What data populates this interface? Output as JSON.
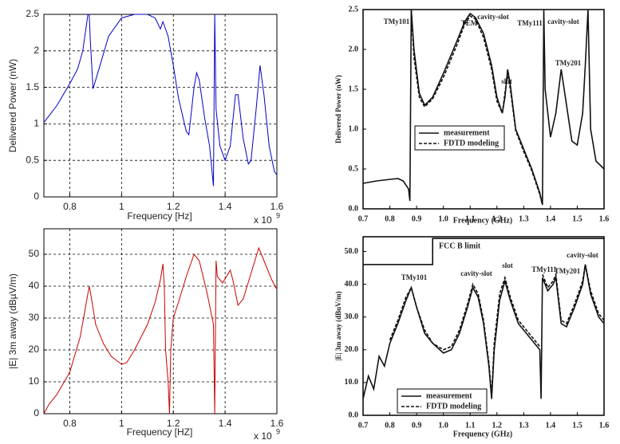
{
  "chart_data": [
    {
      "type": "line",
      "xlabel": "Frequency [Hz]",
      "ylabel": "Delivered Power (nW)",
      "x_scale_label": "x 10",
      "x_scale_exponent": "9",
      "xlim": [
        0.7,
        1.6
      ],
      "ylim": [
        0,
        2.5
      ],
      "xticks": [
        0.8,
        1,
        1.2,
        1.4,
        1.6
      ],
      "yticks": [
        0,
        0.5,
        1,
        1.5,
        2,
        2.5
      ],
      "grid": true,
      "x": [
        0.7,
        0.75,
        0.8,
        0.83,
        0.85,
        0.87,
        0.875,
        0.88,
        0.89,
        0.9,
        0.95,
        1.0,
        1.05,
        1.1,
        1.13,
        1.15,
        1.16,
        1.18,
        1.2,
        1.22,
        1.25,
        1.26,
        1.28,
        1.29,
        1.3,
        1.32,
        1.34,
        1.355,
        1.36,
        1.365,
        1.38,
        1.4,
        1.42,
        1.44,
        1.45,
        1.47,
        1.49,
        1.5,
        1.52,
        1.535,
        1.55,
        1.57,
        1.59,
        1.6
      ],
      "series": [
        {
          "color": "#0000cc",
          "values": [
            1.02,
            1.25,
            1.55,
            1.75,
            2.0,
            2.5,
            2.5,
            2.1,
            1.48,
            1.6,
            2.2,
            2.45,
            2.5,
            2.5,
            2.45,
            2.3,
            2.4,
            2.2,
            1.8,
            1.35,
            0.9,
            0.85,
            1.5,
            1.7,
            1.6,
            1.1,
            0.7,
            0.15,
            2.5,
            1.2,
            0.7,
            0.5,
            0.7,
            1.4,
            1.4,
            0.8,
            0.45,
            0.5,
            1.2,
            1.8,
            1.4,
            0.7,
            0.35,
            0.3
          ]
        }
      ]
    },
    {
      "type": "line",
      "xlabel": "Frequency [HZ]",
      "ylabel": "|E| 3m away (dBµV/m)",
      "x_scale_label": "x 10",
      "x_scale_exponent": "9",
      "xlim": [
        0.7,
        1.6
      ],
      "ylim": [
        0,
        58
      ],
      "xticks": [
        0.8,
        1,
        1.2,
        1.4,
        1.6
      ],
      "yticks": [
        0,
        10,
        20,
        30,
        40,
        50
      ],
      "grid": true,
      "x": [
        0.7,
        0.72,
        0.75,
        0.8,
        0.84,
        0.86,
        0.875,
        0.88,
        0.9,
        0.93,
        0.96,
        1.0,
        1.02,
        1.05,
        1.1,
        1.13,
        1.15,
        1.16,
        1.165,
        1.17,
        1.18,
        1.185,
        1.19,
        1.2,
        1.22,
        1.25,
        1.28,
        1.3,
        1.33,
        1.355,
        1.36,
        1.365,
        1.37,
        1.39,
        1.42,
        1.43,
        1.45,
        1.47,
        1.5,
        1.53,
        1.55,
        1.58,
        1.6
      ],
      "series": [
        {
          "color": "#cc0000",
          "values": [
            0,
            3,
            6,
            13,
            24,
            33,
            40,
            38,
            28,
            22,
            18,
            15.5,
            16,
            20,
            28,
            35,
            42,
            47,
            40,
            20,
            10,
            0,
            20,
            30,
            35,
            43,
            50,
            48,
            38,
            28,
            0,
            48,
            43,
            41,
            45,
            42,
            34,
            36,
            44,
            52,
            48,
            42,
            39
          ]
        }
      ]
    },
    {
      "type": "line",
      "xlabel": "Frequency (GHz)",
      "ylabel": "Delivered Power (nW)",
      "legend": "center left",
      "xlim": [
        0.7,
        1.6
      ],
      "ylim": [
        0,
        2.5
      ],
      "xticks": [
        0.7,
        0.8,
        0.9,
        {
          "value": 1,
          "label": "1.0"
        },
        1.1,
        1.2,
        1.3,
        1.4,
        1.5,
        1.6
      ],
      "yticks": [
        {
          "value": 0,
          "label": "0.0"
        },
        0.5,
        {
          "value": 1,
          "label": "1.0"
        },
        1.5,
        {
          "value": 2,
          "label": "2.0"
        },
        2.5
      ],
      "grid": false,
      "annotations": [
        "TMy101",
        "TEM",
        "cavity-slot",
        "TMy111",
        "cavity-slot",
        "slot",
        "TMy201"
      ],
      "x": [
        0.7,
        0.75,
        0.8,
        0.83,
        0.85,
        0.87,
        0.875,
        0.88,
        0.89,
        0.91,
        0.93,
        0.96,
        1.0,
        1.05,
        1.08,
        1.1,
        1.12,
        1.15,
        1.18,
        1.2,
        1.22,
        1.23,
        1.24,
        1.25,
        1.27,
        1.3,
        1.33,
        1.36,
        1.37,
        1.375,
        1.38,
        1.4,
        1.42,
        1.44,
        1.46,
        1.48,
        1.5,
        1.52,
        1.53,
        1.54,
        1.55,
        1.57,
        1.6
      ],
      "series": [
        {
          "name": "measurement",
          "color": "#111111",
          "line_style": "solid",
          "values": [
            0.32,
            0.35,
            0.37,
            0.38,
            0.35,
            0.25,
            0.1,
            2.5,
            2.0,
            1.45,
            1.3,
            1.4,
            1.7,
            2.1,
            2.35,
            2.45,
            2.4,
            2.2,
            1.8,
            1.4,
            1.2,
            1.4,
            1.75,
            1.55,
            1.0,
            0.75,
            0.5,
            0.2,
            0.05,
            2.5,
            1.5,
            0.9,
            1.2,
            1.75,
            1.3,
            0.85,
            0.8,
            1.2,
            1.8,
            2.5,
            1.0,
            0.6,
            0.5
          ]
        },
        {
          "name": "FDTD modeling",
          "color": "#111111",
          "line_style": "dashed",
          "values": [
            null,
            null,
            null,
            null,
            null,
            null,
            null,
            2.5,
            1.9,
            1.4,
            1.28,
            1.38,
            1.65,
            2.05,
            2.32,
            2.42,
            2.38,
            2.15,
            1.75,
            1.35,
            1.2,
            1.45,
            1.7,
            1.5,
            0.98,
            0.72,
            0.48,
            0.18,
            0.05,
            null,
            null,
            null,
            null,
            null,
            null,
            null,
            null,
            null,
            null,
            null,
            null,
            null,
            null
          ]
        }
      ]
    },
    {
      "type": "line",
      "xlabel": "Frequency (GHz)",
      "ylabel": "|E| 3m away (dBuV/m)",
      "legend": "lower left",
      "xlim": [
        0.7,
        1.6
      ],
      "ylim": [
        0,
        54.5
      ],
      "xticks": [
        0.7,
        0.8,
        0.9,
        {
          "value": 1,
          "label": "1.0"
        },
        1.1,
        1.2,
        1.3,
        1.4,
        1.5,
        1.6
      ],
      "yticks": [
        {
          "value": 0,
          "label": "0.0"
        },
        {
          "value": 10,
          "label": "10.0"
        },
        {
          "value": 20,
          "label": "20.0"
        },
        {
          "value": 30,
          "label": "30.0"
        },
        {
          "value": 40,
          "label": "40.0"
        },
        {
          "value": 50,
          "label": "50.0"
        }
      ],
      "grid": false,
      "limit": {
        "label": "FCC B limit",
        "x": [
          0.7,
          0.96,
          0.96,
          1.6
        ],
        "values": [
          46,
          46,
          54,
          54
        ]
      },
      "annotations": [
        "TMy101",
        "cavity-slot",
        "slot",
        "TMy111",
        "TMy201",
        "cavity-slot"
      ],
      "x": [
        0.7,
        0.72,
        0.74,
        0.76,
        0.78,
        0.8,
        0.83,
        0.86,
        0.88,
        0.9,
        0.93,
        0.96,
        1.0,
        1.03,
        1.06,
        1.09,
        1.11,
        1.13,
        1.15,
        1.17,
        1.18,
        1.19,
        1.21,
        1.23,
        1.25,
        1.28,
        1.31,
        1.34,
        1.36,
        1.365,
        1.37,
        1.39,
        1.41,
        1.42,
        1.44,
        1.46,
        1.49,
        1.52,
        1.53,
        1.55,
        1.58,
        1.6
      ],
      "series": [
        {
          "name": "measurement",
          "color": "#111111",
          "line_style": "solid",
          "values": [
            5,
            12,
            8,
            18,
            15,
            22,
            28,
            35,
            39,
            33,
            25,
            22,
            19,
            20,
            25,
            33,
            39,
            36,
            28,
            15,
            5,
            20,
            35,
            41,
            35,
            28,
            25,
            22,
            20,
            5,
            42,
            38,
            40,
            42,
            28,
            27,
            33,
            40,
            46,
            37,
            30,
            28
          ]
        },
        {
          "name": "FDTD modeling",
          "color": "#111111",
          "line_style": "dashed",
          "values": [
            null,
            null,
            null,
            null,
            null,
            23,
            29,
            36,
            39,
            33,
            26,
            22,
            20,
            21,
            26,
            34,
            40,
            37,
            29,
            16,
            6,
            22,
            37,
            42,
            36,
            29,
            26,
            23,
            21,
            null,
            43,
            39,
            41,
            43,
            29,
            28,
            34,
            41,
            46,
            38,
            31,
            29
          ]
        }
      ]
    }
  ]
}
